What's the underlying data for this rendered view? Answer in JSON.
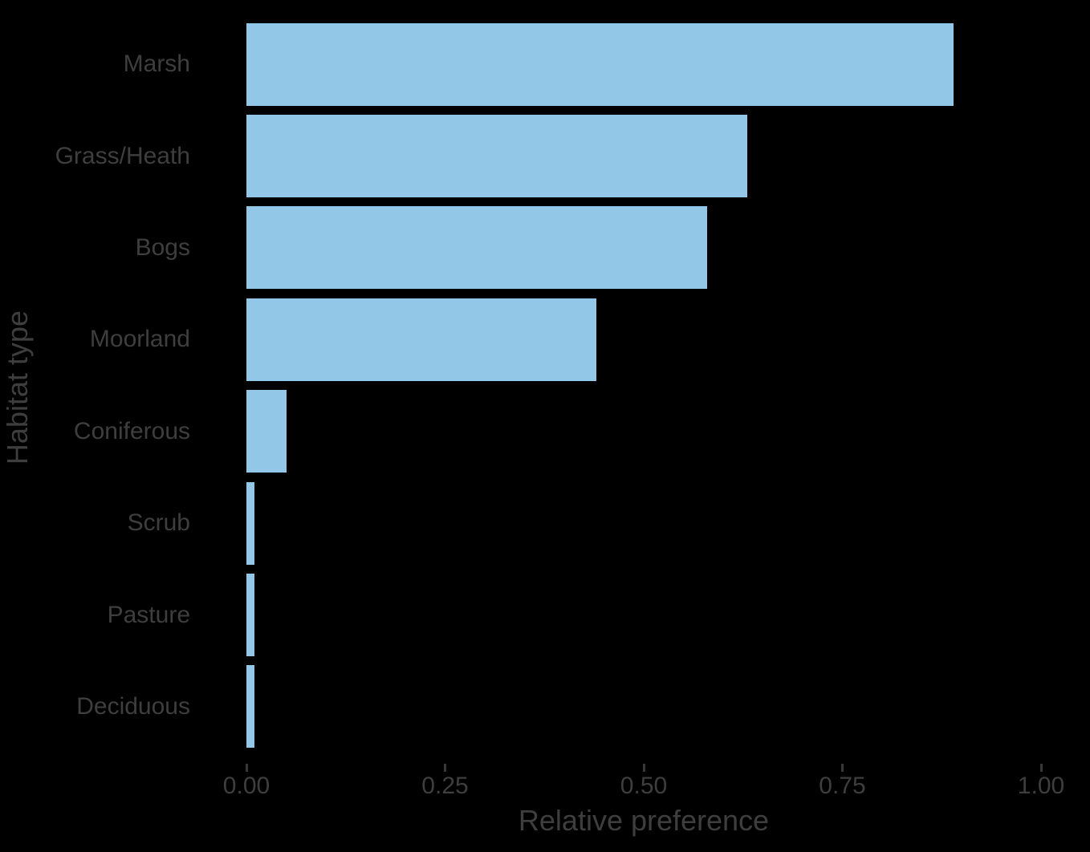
{
  "chart_data": {
    "type": "bar",
    "orientation": "horizontal",
    "title": "",
    "xlabel": "Relative preference",
    "ylabel": "Habitat type",
    "categories": [
      "Marsh",
      "Grass/Heath",
      "Bogs",
      "Moorland",
      "Coniferous",
      "Scrub",
      "Pasture",
      "Deciduous"
    ],
    "values": [
      0.89,
      0.63,
      0.58,
      0.44,
      0.05,
      0.01,
      0.01,
      0.01
    ],
    "xlim": [
      0,
      1
    ],
    "xticks": [
      {
        "value": 0.0,
        "label": "0.00"
      },
      {
        "value": 0.25,
        "label": "0.25"
      },
      {
        "value": 0.5,
        "label": "0.50"
      },
      {
        "value": 0.75,
        "label": "0.75"
      },
      {
        "value": 1.0,
        "label": "1.00"
      }
    ],
    "grid": false,
    "legend": "none",
    "colors": {
      "bar": "#92c7e8",
      "text": "#3e3e3e",
      "tick": "#383838",
      "background": "#000000"
    }
  }
}
